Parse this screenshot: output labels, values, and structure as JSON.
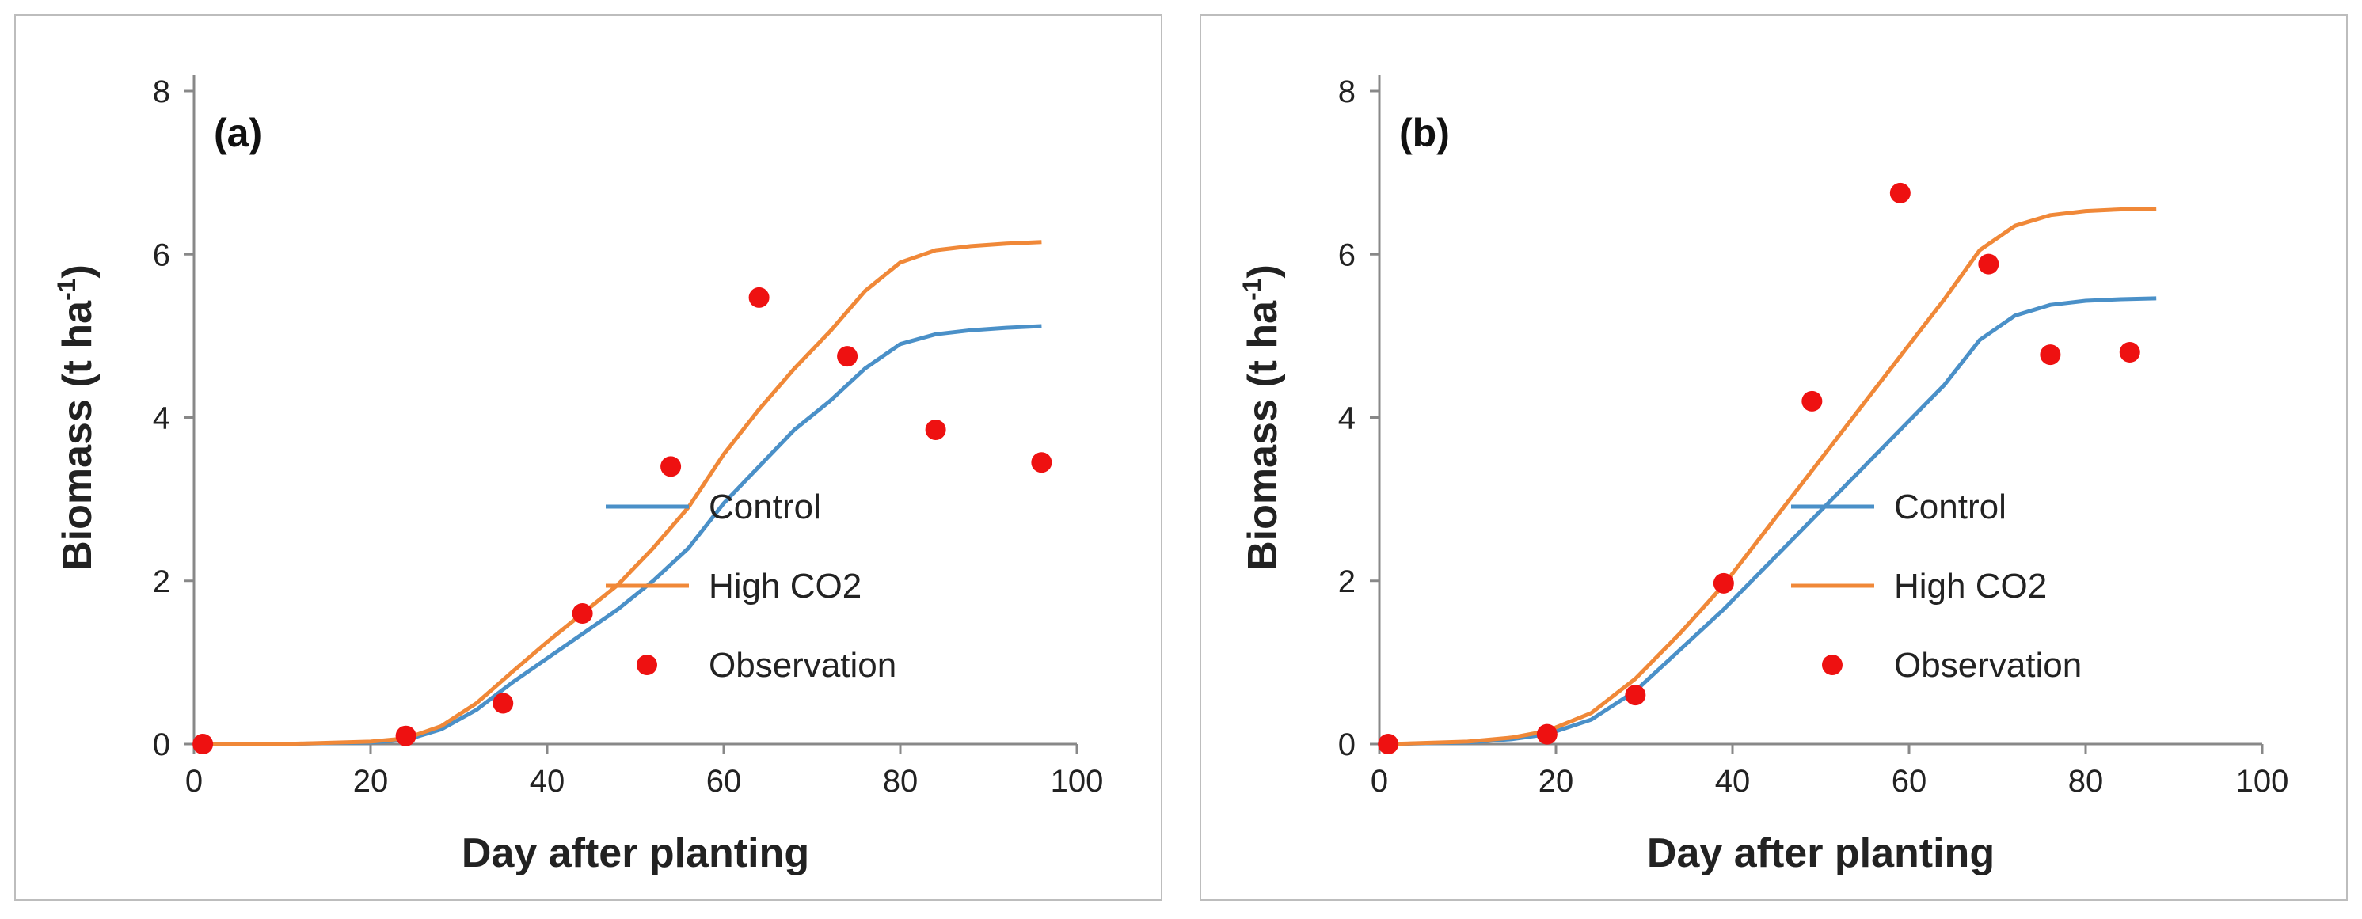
{
  "chart_data": [
    {
      "type": "line",
      "panel_label": "(a)",
      "xlabel": "Day after planting",
      "ylabel": "Biomass (t ha",
      "ylabel_sup": "-1",
      "ylabel_end": ")",
      "xlim": [
        0,
        100
      ],
      "ylim": [
        0,
        8
      ],
      "xticks": [
        0,
        20,
        40,
        60,
        80,
        100
      ],
      "yticks": [
        0,
        2,
        4,
        6,
        8
      ],
      "legend_position": "bottom-right",
      "series": [
        {
          "name": "Control",
          "color": "#4a90c8",
          "kind": "line",
          "x": [
            1,
            10,
            20,
            24,
            28,
            32,
            36,
            40,
            44,
            48,
            52,
            56,
            60,
            64,
            68,
            72,
            76,
            80,
            84,
            88,
            92,
            96
          ],
          "y": [
            0.0,
            0.0,
            0.02,
            0.05,
            0.18,
            0.42,
            0.75,
            1.05,
            1.35,
            1.65,
            2.0,
            2.4,
            2.95,
            3.4,
            3.85,
            4.2,
            4.6,
            4.9,
            5.02,
            5.07,
            5.1,
            5.12
          ]
        },
        {
          "name": "High CO2",
          "color": "#f08838",
          "kind": "line",
          "x": [
            1,
            10,
            20,
            24,
            28,
            32,
            36,
            40,
            44,
            48,
            52,
            56,
            60,
            64,
            68,
            72,
            76,
            80,
            84,
            88,
            92,
            96
          ],
          "y": [
            0.0,
            0.0,
            0.03,
            0.07,
            0.22,
            0.5,
            0.88,
            1.25,
            1.6,
            1.95,
            2.4,
            2.9,
            3.55,
            4.1,
            4.6,
            5.05,
            5.55,
            5.9,
            6.05,
            6.1,
            6.13,
            6.15
          ]
        },
        {
          "name": "Observation",
          "color": "#ee1111",
          "kind": "scatter",
          "x": [
            1,
            24,
            35,
            44,
            54,
            64,
            74,
            84,
            96
          ],
          "y": [
            0.0,
            0.1,
            0.5,
            1.6,
            3.4,
            5.47,
            4.75,
            3.85,
            3.45
          ]
        }
      ]
    },
    {
      "type": "line",
      "panel_label": "(b)",
      "xlabel": "Day after planting",
      "ylabel": "Biomass (t ha",
      "ylabel_sup": "-1",
      "ylabel_end": ")",
      "xlim": [
        0,
        100
      ],
      "ylim": [
        0,
        8
      ],
      "xticks": [
        0,
        20,
        40,
        60,
        80,
        100
      ],
      "yticks": [
        0,
        2,
        4,
        6,
        8
      ],
      "legend_position": "bottom-right",
      "series": [
        {
          "name": "Control",
          "color": "#4a90c8",
          "kind": "line",
          "x": [
            1,
            10,
            15,
            19,
            24,
            29,
            34,
            39,
            44,
            49,
            54,
            59,
            64,
            68,
            72,
            76,
            80,
            84,
            88
          ],
          "y": [
            0.0,
            0.02,
            0.06,
            0.12,
            0.3,
            0.65,
            1.15,
            1.65,
            2.2,
            2.75,
            3.3,
            3.85,
            4.4,
            4.95,
            5.25,
            5.38,
            5.43,
            5.45,
            5.46
          ]
        },
        {
          "name": "High CO2",
          "color": "#f08838",
          "kind": "line",
          "x": [
            1,
            10,
            15,
            19,
            24,
            29,
            34,
            39,
            44,
            49,
            54,
            59,
            64,
            68,
            72,
            76,
            80,
            84,
            88
          ],
          "y": [
            0.0,
            0.03,
            0.08,
            0.16,
            0.38,
            0.8,
            1.35,
            1.95,
            2.65,
            3.35,
            4.05,
            4.75,
            5.45,
            6.05,
            6.35,
            6.48,
            6.53,
            6.55,
            6.56
          ]
        },
        {
          "name": "Observation",
          "color": "#ee1111",
          "kind": "scatter",
          "x": [
            1,
            19,
            29,
            39,
            49,
            59,
            69,
            76,
            85
          ],
          "y": [
            0.0,
            0.12,
            0.6,
            1.97,
            4.2,
            6.75,
            5.88,
            4.77,
            4.8
          ]
        }
      ]
    }
  ]
}
